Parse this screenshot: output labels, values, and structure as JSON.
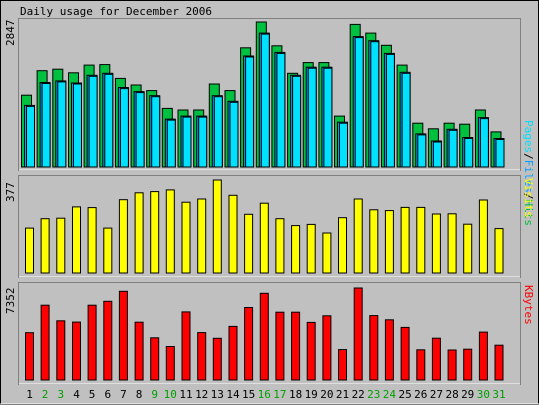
{
  "title": "Daily usage for December 2006",
  "colors": {
    "background": "#c0c0c0",
    "hits": "#00c040",
    "files": "#00a0ff",
    "pages": "#00e0ff",
    "visits": "#ffff00",
    "kbytes": "#ff0000",
    "weekend_label": "#00a000",
    "weekday_label": "#000000"
  },
  "chart_data": [
    {
      "type": "bar",
      "panel": "hits-files-pages",
      "ymax_label": "2847",
      "legend": {
        "pages": "Pages",
        "files": "Files",
        "hits": "Hits",
        "sep": "/"
      },
      "categories": [
        "1",
        "2",
        "3",
        "4",
        "5",
        "6",
        "7",
        "8",
        "9",
        "10",
        "11",
        "12",
        "13",
        "14",
        "15",
        "16",
        "17",
        "18",
        "19",
        "20",
        "21",
        "22",
        "23",
        "24",
        "25",
        "26",
        "27",
        "28",
        "29",
        "30",
        "31"
      ],
      "weekend_days": [
        "2",
        "3",
        "9",
        "10",
        "16",
        "17",
        "23",
        "24",
        "30",
        "31"
      ],
      "series": [
        {
          "name": "Hits",
          "values": [
            1410,
            1890,
            1920,
            1850,
            2000,
            2010,
            1740,
            1610,
            1500,
            1150,
            1120,
            1120,
            1630,
            1500,
            2340,
            2847,
            2380,
            1840,
            2050,
            2050,
            1000,
            2800,
            2630,
            2390,
            2000,
            860,
            750,
            860,
            840,
            1120,
            690
          ]
        },
        {
          "name": "Files",
          "values": [
            1210,
            1660,
            1690,
            1650,
            1800,
            1840,
            1560,
            1480,
            1400,
            940,
            1000,
            1000,
            1400,
            1290,
            2180,
            2630,
            2250,
            1800,
            1960,
            1960,
            880,
            2560,
            2480,
            2230,
            1860,
            650,
            510,
            740,
            580,
            970,
            560
          ]
        },
        {
          "name": "Pages",
          "values": [
            1190,
            1640,
            1670,
            1630,
            1780,
            1820,
            1540,
            1460,
            1380,
            920,
            980,
            980,
            1380,
            1270,
            2160,
            2610,
            2230,
            1780,
            1940,
            1940,
            860,
            2540,
            2460,
            2210,
            1840,
            630,
            490,
            720,
            560,
            950,
            540
          ]
        }
      ]
    },
    {
      "type": "bar",
      "panel": "visits",
      "ymax_label": "377",
      "legend": "Visits",
      "categories": [
        "1",
        "2",
        "3",
        "4",
        "5",
        "6",
        "7",
        "8",
        "9",
        "10",
        "11",
        "12",
        "13",
        "14",
        "15",
        "16",
        "17",
        "18",
        "19",
        "20",
        "21",
        "22",
        "23",
        "24",
        "25",
        "26",
        "27",
        "28",
        "29",
        "30",
        "31"
      ],
      "series": [
        {
          "name": "Visits",
          "values": [
            182,
            220,
            222,
            268,
            265,
            182,
            297,
            325,
            330,
            337,
            287,
            300,
            377,
            315,
            238,
            283,
            220,
            192,
            197,
            162,
            224,
            300,
            256,
            253,
            266,
            266,
            239,
            240,
            198,
            296,
            180
          ]
        }
      ]
    },
    {
      "type": "bar",
      "panel": "kbytes",
      "ymax_label": "7352",
      "legend": "KBytes",
      "categories": [
        "1",
        "2",
        "3",
        "4",
        "5",
        "6",
        "7",
        "8",
        "9",
        "10",
        "11",
        "12",
        "13",
        "14",
        "15",
        "16",
        "17",
        "18",
        "19",
        "20",
        "21",
        "22",
        "23",
        "24",
        "25",
        "26",
        "27",
        "28",
        "29",
        "30",
        "31"
      ],
      "series": [
        {
          "name": "KBytes",
          "values": [
            3780,
            5980,
            4730,
            4630,
            5980,
            6290,
            7090,
            4620,
            3370,
            2680,
            5440,
            3790,
            3330,
            4280,
            5790,
            6930,
            5420,
            5420,
            4600,
            5130,
            2430,
            7352,
            5150,
            4810,
            4200,
            2410,
            3340,
            2400,
            2460,
            3830,
            2780
          ]
        }
      ]
    }
  ]
}
